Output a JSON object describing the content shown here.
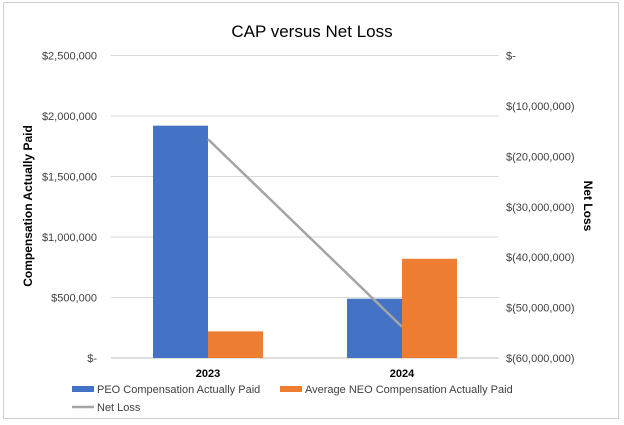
{
  "chart_data": {
    "type": "bar",
    "title": "CAP versus Net Loss",
    "categories": [
      "2023",
      "2024"
    ],
    "ylabel": "Compensation Actually Paid",
    "y2label": "Net  Loss",
    "ylim": [
      0,
      2500000
    ],
    "y2lim": [
      -60000000,
      0
    ],
    "yticks": [
      0,
      500000,
      1000000,
      1500000,
      2000000,
      2500000
    ],
    "ytick_labels": [
      "$-",
      "$500,000",
      "$1,000,000",
      "$1,500,000",
      "$2,000,000",
      "$2,500,000"
    ],
    "y2ticks": [
      -60000000,
      -50000000,
      -40000000,
      -30000000,
      -20000000,
      -10000000,
      0
    ],
    "y2tick_labels": [
      "$(60,000,000)",
      "$(50,000,000)",
      "$(40,000,000)",
      "$(30,000,000)",
      "$(20,000,000)",
      "$(10,000,000)",
      "$-"
    ],
    "grid": true,
    "legend_position": "bottom",
    "series": [
      {
        "name": "PEO Compensation Actually Paid",
        "kind": "bar",
        "axis": "left",
        "color": "#4472C4",
        "values": [
          1920000,
          490000
        ]
      },
      {
        "name": "Average NEO Compensation Actually Paid",
        "kind": "bar",
        "axis": "left",
        "color": "#ED7D31",
        "values": [
          220000,
          820000
        ]
      },
      {
        "name": "Net Loss",
        "kind": "line",
        "axis": "right",
        "color": "#A5A5A5",
        "values": [
          -16600000,
          -53800000
        ]
      }
    ]
  }
}
